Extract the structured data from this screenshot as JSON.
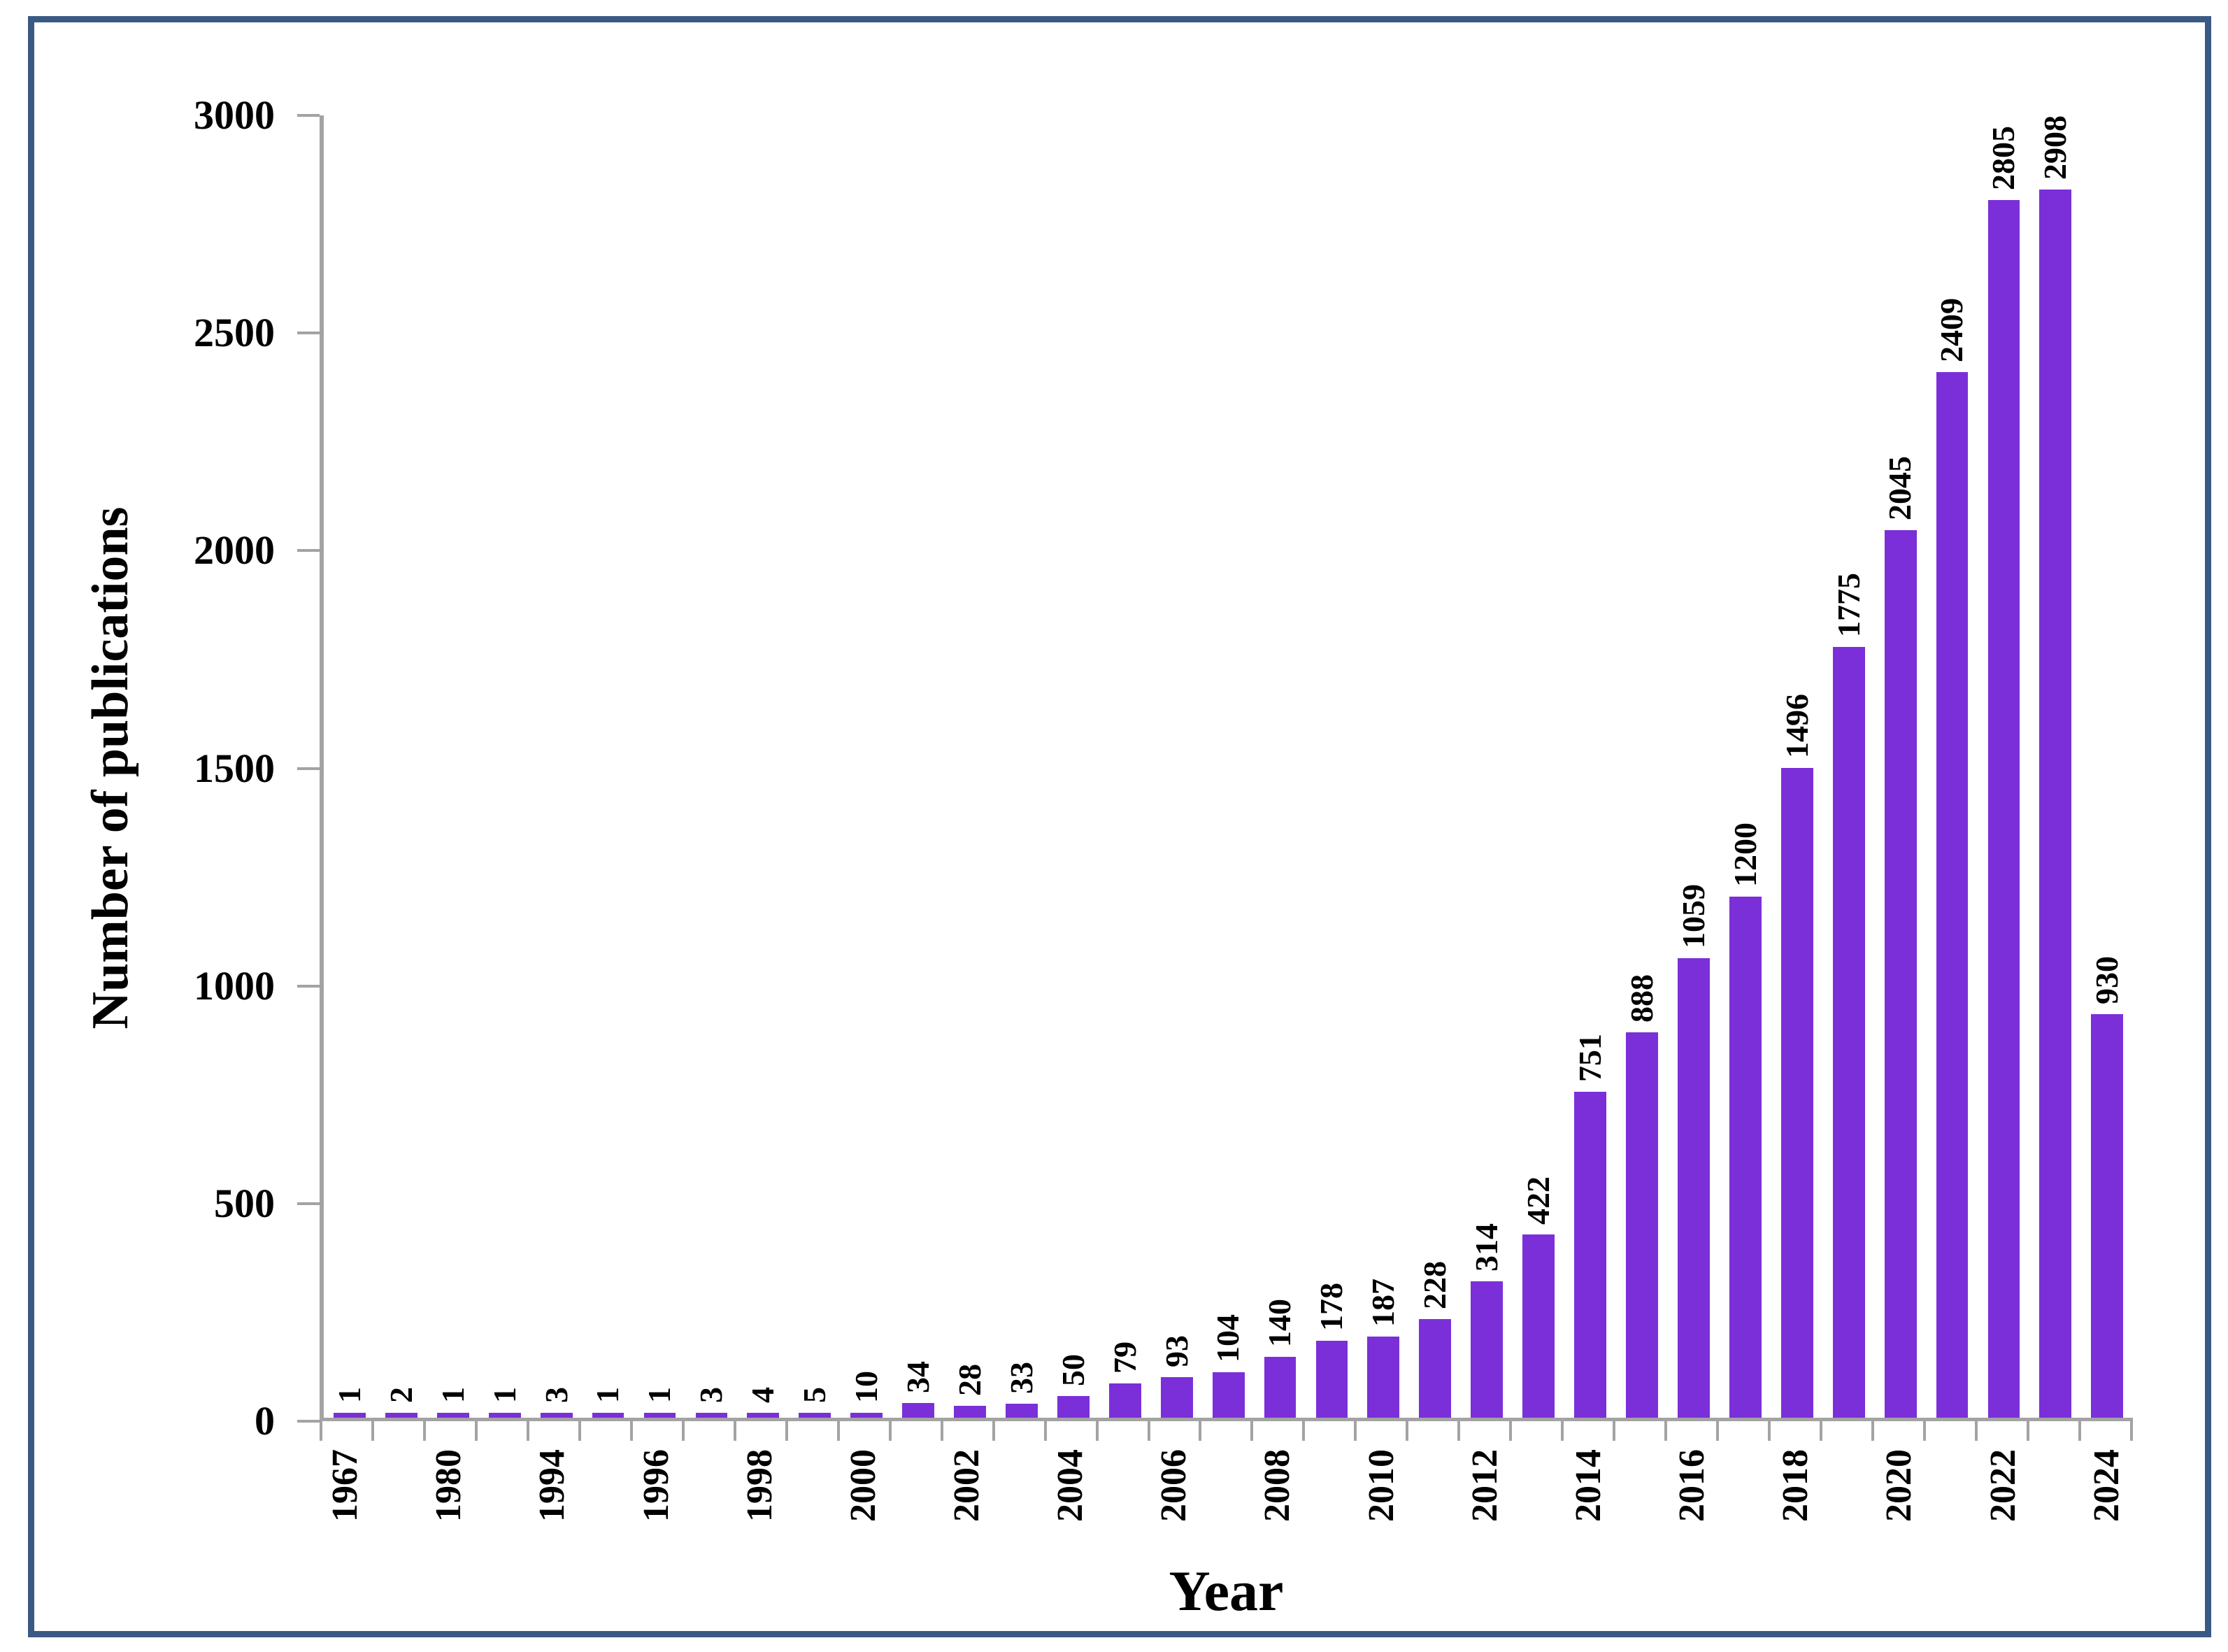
{
  "figure": {
    "background_color": "#FFFFFF",
    "border_color": "#3A5A84"
  },
  "chart_data": {
    "type": "bar",
    "title": "",
    "xlabel": "Year",
    "ylabel": "Number of publications",
    "ylim": [
      0,
      3000
    ],
    "y_ticks": [
      "0",
      "500",
      "1000",
      "1500",
      "2000",
      "2500",
      "3000"
    ],
    "grid": false,
    "legend": false,
    "bar_color": "#7B2FD8",
    "axis_color": "#A3A3A3",
    "text_color": "#000000",
    "x_tick_label_rotation": 90,
    "value_label_rotation": 90,
    "value_labels_shown": true,
    "categories": [
      "1967",
      "",
      "1980",
      "",
      "1994",
      "",
      "1996",
      "",
      "1998",
      "",
      "2000",
      "",
      "2002",
      "",
      "2004",
      "",
      "2006",
      "",
      "2008",
      "",
      "2010",
      "",
      "2012",
      "",
      "2014",
      "",
      "2016",
      "",
      "2018",
      "",
      "2020",
      "",
      "2022",
      "",
      "2024"
    ],
    "values": [
      1,
      2,
      1,
      1,
      3,
      1,
      1,
      3,
      4,
      5,
      10,
      34,
      28,
      33,
      50,
      79,
      93,
      104,
      140,
      178,
      187,
      228,
      314,
      422,
      751,
      888,
      1059,
      1200,
      1496,
      1775,
      2045,
      2409,
      2805,
      2908,
      930
    ]
  }
}
